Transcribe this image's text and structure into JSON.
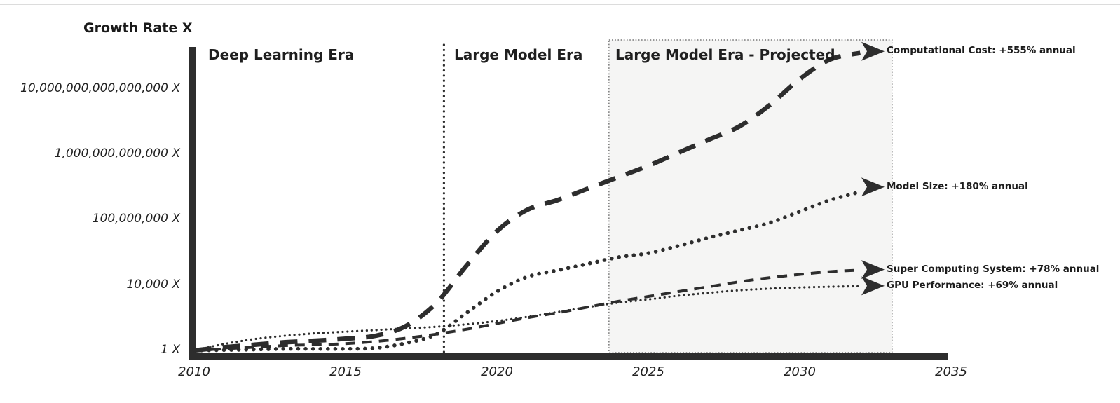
{
  "page": {
    "background": "#ffffff",
    "top_border_color": "#dcdcdc"
  },
  "chart_data": {
    "type": "line",
    "title": "Growth Rate X",
    "y_axis": {
      "scale": "log",
      "ticks": [
        {
          "label": "10,000,000,000,000,000 X",
          "log10": 16
        },
        {
          "label": "1,000,000,000,000 X",
          "log10": 12
        },
        {
          "label": "100,000,000 X",
          "log10": 8
        },
        {
          "label": "10,000 X",
          "log10": 4
        },
        {
          "label": "1 X",
          "log10": 0
        }
      ]
    },
    "x_axis": {
      "ticks": [
        {
          "label": "2010",
          "year": 2010
        },
        {
          "label": "2015",
          "year": 2015
        },
        {
          "label": "2020",
          "year": 2020
        },
        {
          "label": "2025",
          "year": 2025
        },
        {
          "label": "2030",
          "year": 2030
        },
        {
          "label": "2035",
          "year": 2035
        }
      ],
      "range": [
        2010,
        2035
      ]
    },
    "eras": [
      {
        "label": "Deep Learning Era",
        "start_year": 2010,
        "end_year": 2018.25,
        "shaded": false
      },
      {
        "label": "Large Model Era",
        "start_year": 2018.25,
        "end_year": 2023.7,
        "shaded": false
      },
      {
        "label": "Large Model Era - Projected",
        "start_year": 2023.7,
        "end_year": 2033.05,
        "shaded": true
      }
    ],
    "years": [
      2010,
      2011,
      2012,
      2013,
      2014,
      2015,
      2016,
      2017,
      2018,
      2019,
      2020,
      2021,
      2022,
      2023,
      2024,
      2025,
      2026,
      2027,
      2028,
      2029,
      2030,
      2031,
      2032,
      2033
    ],
    "series": [
      {
        "name": "Computational Cost",
        "growth_rate": "+555% annual",
        "annotation": "Computational Cost: +555% annual",
        "line_style": "bold-dash",
        "log10_values": [
          0,
          0.2,
          0.35,
          0.5,
          0.6,
          0.72,
          0.9,
          1.5,
          2.9,
          5.2,
          7.3,
          8.6,
          9.2,
          9.9,
          10.6,
          11.3,
          12.1,
          12.9,
          13.7,
          15.0,
          16.6,
          17.8,
          18.2,
          18.3
        ]
      },
      {
        "name": "Model Size",
        "growth_rate": "+180% annual",
        "annotation": "Model Size: +180% annual",
        "line_style": "large-dot",
        "log10_values": [
          0,
          0.03,
          0.06,
          0.1,
          0.1,
          0.1,
          0.15,
          0.45,
          1.0,
          2.3,
          3.6,
          4.5,
          4.9,
          5.3,
          5.7,
          5.95,
          6.4,
          6.9,
          7.35,
          7.8,
          8.5,
          9.2,
          9.7,
          10.0
        ]
      },
      {
        "name": "Super Computing System",
        "growth_rate": "+78% annual",
        "annotation": "Super Computing System: +78% annual",
        "line_style": "dash",
        "log10_values": [
          0,
          0.1,
          0.2,
          0.3,
          0.35,
          0.42,
          0.55,
          0.75,
          1.0,
          1.3,
          1.65,
          2.0,
          2.3,
          2.65,
          3.0,
          3.3,
          3.6,
          3.9,
          4.2,
          4.45,
          4.65,
          4.82,
          4.92,
          4.95
        ]
      },
      {
        "name": "GPU Performance",
        "growth_rate": "+69% annual",
        "annotation": "GPU Performance: +69% annual",
        "line_style": "small-dot",
        "log10_values": [
          0,
          0.4,
          0.7,
          0.9,
          1.05,
          1.15,
          1.25,
          1.35,
          1.45,
          1.6,
          1.8,
          2.05,
          2.35,
          2.65,
          2.92,
          3.12,
          3.35,
          3.52,
          3.68,
          3.78,
          3.85,
          3.9,
          3.93,
          3.95
        ]
      }
    ],
    "colors": {
      "ink": "#2d2d2d",
      "shade_fill": "#f5f5f4",
      "shade_border": "#777777"
    },
    "legend_position": "right-annotations",
    "grid": false
  }
}
